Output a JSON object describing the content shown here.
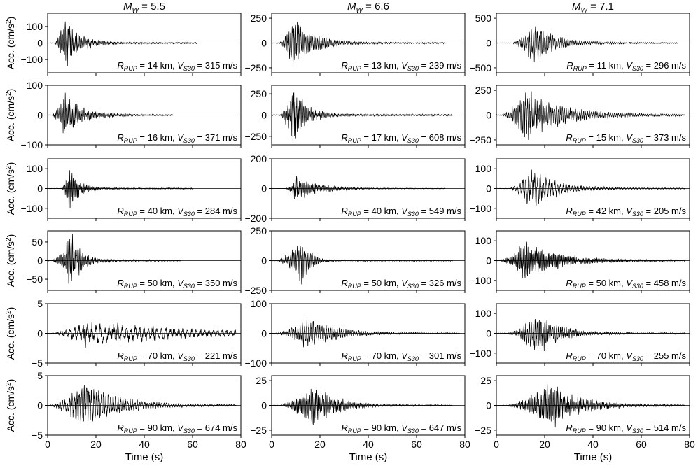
{
  "figure": {
    "columns": [
      {
        "label_main": "M",
        "label_sub": "W",
        "label_rest": " = 5.5"
      },
      {
        "label_main": "M",
        "label_sub": "W",
        "label_rest": " = 6.6"
      },
      {
        "label_main": "M",
        "label_sub": "W",
        "label_rest": " = 7.1"
      }
    ],
    "ylabel": {
      "main": "Acc. (cm/s",
      "sup": "2",
      "tail": ")"
    },
    "xlabel": "Time (s)",
    "trace_color": "#000000"
  },
  "chart_data": [
    {
      "type": "line",
      "row": 0,
      "col": 0,
      "magnitude": 5.5,
      "ylim": [
        -180,
        180
      ],
      "yticks": [
        -100,
        0,
        100
      ],
      "xlim": [
        0,
        80
      ],
      "xticks": [
        0,
        20,
        40,
        60,
        80
      ],
      "rrup_km": 14,
      "vs30": 315,
      "annotation": {
        "r": "14",
        "v": "315"
      },
      "peak": 140,
      "onset_s": 3,
      "envelope_peak_s": 7,
      "envelope_decay_s": 6,
      "coda_end_s": 62,
      "dominant_period_s": 0.6,
      "seed": 11
    },
    {
      "type": "line",
      "row": 0,
      "col": 1,
      "magnitude": 6.6,
      "ylim": [
        -300,
        300
      ],
      "yticks": [
        -250,
        0,
        250
      ],
      "xlim": [
        0,
        80
      ],
      "xticks": [
        0,
        20,
        40,
        60,
        80
      ],
      "rrup_km": 13,
      "vs30": 239,
      "annotation": {
        "r": "13",
        "v": "239"
      },
      "peak": 210,
      "onset_s": 3,
      "envelope_peak_s": 9,
      "envelope_decay_s": 8,
      "coda_end_s": 72,
      "dominant_period_s": 0.7,
      "seed": 21
    },
    {
      "type": "line",
      "row": 0,
      "col": 2,
      "magnitude": 7.1,
      "ylim": [
        -600,
        600
      ],
      "yticks": [
        -500,
        0,
        500
      ],
      "xlim": [
        0,
        80
      ],
      "xticks": [
        0,
        20,
        40,
        60,
        80
      ],
      "rrup_km": 11,
      "vs30": 296,
      "annotation": {
        "r": "11",
        "v": "296"
      },
      "peak": 380,
      "onset_s": 7,
      "envelope_peak_s": 15,
      "envelope_decay_s": 9,
      "coda_end_s": 75,
      "dominant_period_s": 0.8,
      "seed": 31
    },
    {
      "type": "line",
      "row": 1,
      "col": 0,
      "magnitude": 5.5,
      "ylim": [
        -100,
        100
      ],
      "yticks": [
        -100,
        0,
        100
      ],
      "xlim": [
        0,
        80
      ],
      "xticks": [
        0,
        20,
        40,
        60,
        80
      ],
      "rrup_km": 16,
      "vs30": 371,
      "annotation": {
        "r": "16",
        "v": "371"
      },
      "peak": 75,
      "onset_s": 2,
      "envelope_peak_s": 7,
      "envelope_decay_s": 7,
      "coda_end_s": 52,
      "dominant_period_s": 0.6,
      "seed": 12
    },
    {
      "type": "line",
      "row": 1,
      "col": 1,
      "magnitude": 6.6,
      "ylim": [
        -350,
        350
      ],
      "yticks": [
        -250,
        0,
        250
      ],
      "xlim": [
        0,
        80
      ],
      "xticks": [
        0,
        20,
        40,
        60,
        80
      ],
      "rrup_km": 17,
      "vs30": 608,
      "annotation": {
        "r": "17",
        "v": "608"
      },
      "peak": 340,
      "onset_s": 4,
      "envelope_peak_s": 9,
      "envelope_decay_s": 5,
      "coda_end_s": 75,
      "dominant_period_s": 0.6,
      "seed": 22
    },
    {
      "type": "line",
      "row": 1,
      "col": 2,
      "magnitude": 7.1,
      "ylim": [
        -300,
        300
      ],
      "yticks": [
        -250,
        0,
        250
      ],
      "xlim": [
        0,
        80
      ],
      "xticks": [
        0,
        20,
        40,
        60,
        80
      ],
      "rrup_km": 15,
      "vs30": 373,
      "annotation": {
        "r": "15",
        "v": "373"
      },
      "peak": 250,
      "onset_s": 3,
      "envelope_peak_s": 12,
      "envelope_decay_s": 14,
      "coda_end_s": 78,
      "dominant_period_s": 0.8,
      "seed": 32
    },
    {
      "type": "line",
      "row": 2,
      "col": 0,
      "magnitude": 5.5,
      "ylim": [
        -150,
        150
      ],
      "yticks": [
        -100,
        0,
        100
      ],
      "xlim": [
        0,
        80
      ],
      "xticks": [
        0,
        20,
        40,
        60,
        80
      ],
      "rrup_km": 40,
      "vs30": 284,
      "annotation": {
        "r": "40",
        "v": "284"
      },
      "peak": 100,
      "onset_s": 6,
      "envelope_peak_s": 9,
      "envelope_decay_s": 4,
      "coda_end_s": 60,
      "dominant_period_s": 0.5,
      "seed": 13
    },
    {
      "type": "line",
      "row": 2,
      "col": 1,
      "magnitude": 6.6,
      "ylim": [
        -200,
        200
      ],
      "yticks": [
        -200,
        0,
        200
      ],
      "xlim": [
        0,
        80
      ],
      "xticks": [
        0,
        20,
        40,
        60,
        80
      ],
      "rrup_km": 40,
      "vs30": 549,
      "annotation": {
        "r": "40",
        "v": "549"
      },
      "peak": 85,
      "onset_s": 6,
      "envelope_peak_s": 10,
      "envelope_decay_s": 9,
      "coda_end_s": 72,
      "dominant_period_s": 0.6,
      "seed": 23
    },
    {
      "type": "line",
      "row": 2,
      "col": 2,
      "magnitude": 7.1,
      "ylim": [
        -150,
        150
      ],
      "yticks": [
        -100,
        0,
        100
      ],
      "xlim": [
        0,
        80
      ],
      "xticks": [
        0,
        20,
        40,
        60,
        80
      ],
      "rrup_km": 42,
      "vs30": 205,
      "annotation": {
        "r": "42",
        "v": "205"
      },
      "peak": 95,
      "onset_s": 6,
      "envelope_peak_s": 14,
      "envelope_decay_s": 10,
      "coda_end_s": 78,
      "dominant_period_s": 1.2,
      "seed": 33
    },
    {
      "type": "line",
      "row": 3,
      "col": 0,
      "magnitude": 5.5,
      "ylim": [
        -80,
        80
      ],
      "yticks": [
        -50,
        0,
        50
      ],
      "xlim": [
        0,
        80
      ],
      "xticks": [
        0,
        20,
        40,
        60,
        80
      ],
      "rrup_km": 50,
      "vs30": 350,
      "annotation": {
        "r": "50",
        "v": "350"
      },
      "peak": 72,
      "onset_s": 2,
      "envelope_peak_s": 10,
      "envelope_decay_s": 4,
      "coda_end_s": 55,
      "dominant_period_s": 0.6,
      "seed": 14
    },
    {
      "type": "line",
      "row": 3,
      "col": 1,
      "magnitude": 6.6,
      "ylim": [
        -250,
        250
      ],
      "yticks": [
        -250,
        0,
        250
      ],
      "xlim": [
        0,
        80
      ],
      "xticks": [
        0,
        20,
        40,
        60,
        80
      ],
      "rrup_km": 50,
      "vs30": 326,
      "annotation": {
        "r": "50",
        "v": "326"
      },
      "peak": 200,
      "onset_s": 3,
      "envelope_peak_s": 13,
      "envelope_decay_s": 3,
      "coda_end_s": 75,
      "dominant_period_s": 0.7,
      "seed": 24
    },
    {
      "type": "line",
      "row": 3,
      "col": 2,
      "magnitude": 7.1,
      "ylim": [
        -150,
        150
      ],
      "yticks": [
        -100,
        0,
        100
      ],
      "xlim": [
        0,
        80
      ],
      "xticks": [
        0,
        20,
        40,
        60,
        80
      ],
      "rrup_km": 50,
      "vs30": 458,
      "annotation": {
        "r": "50",
        "v": "458"
      },
      "peak": 95,
      "onset_s": 2,
      "envelope_peak_s": 12,
      "envelope_decay_s": 14,
      "coda_end_s": 78,
      "dominant_period_s": 0.5,
      "seed": 34
    },
    {
      "type": "line",
      "row": 4,
      "col": 0,
      "magnitude": 5.5,
      "ylim": [
        -5,
        5
      ],
      "yticks": [
        -5,
        0,
        5
      ],
      "xlim": [
        0,
        80
      ],
      "xticks": [
        0,
        20,
        40,
        60,
        80
      ],
      "rrup_km": 70,
      "vs30": 221,
      "annotation": {
        "r": "70",
        "v": "221"
      },
      "peak": 2.4,
      "onset_s": 2,
      "envelope_peak_s": 16,
      "envelope_decay_s": 40,
      "coda_end_s": 78,
      "dominant_period_s": 1.8,
      "seed": 15
    },
    {
      "type": "line",
      "row": 4,
      "col": 1,
      "magnitude": 6.6,
      "ylim": [
        -100,
        100
      ],
      "yticks": [
        -100,
        0,
        100
      ],
      "xlim": [
        0,
        80
      ],
      "xticks": [
        0,
        20,
        40,
        60,
        80
      ],
      "rrup_km": 70,
      "vs30": 301,
      "annotation": {
        "r": "70",
        "v": "301"
      },
      "peak": 50,
      "onset_s": 2,
      "envelope_peak_s": 15,
      "envelope_decay_s": 12,
      "coda_end_s": 78,
      "dominant_period_s": 0.9,
      "seed": 25
    },
    {
      "type": "line",
      "row": 4,
      "col": 2,
      "magnitude": 7.1,
      "ylim": [
        -150,
        150
      ],
      "yticks": [
        -100,
        0,
        100
      ],
      "xlim": [
        0,
        80
      ],
      "xticks": [
        0,
        20,
        40,
        60,
        80
      ],
      "rrup_km": 70,
      "vs30": 255,
      "annotation": {
        "r": "70",
        "v": "255"
      },
      "peak": 90,
      "onset_s": 5,
      "envelope_peak_s": 17,
      "envelope_decay_s": 9,
      "coda_end_s": 78,
      "dominant_period_s": 0.8,
      "seed": 35
    },
    {
      "type": "line",
      "row": 5,
      "col": 0,
      "magnitude": 5.5,
      "ylim": [
        -5,
        5
      ],
      "yticks": [
        -5,
        0,
        5
      ],
      "xlim": [
        0,
        80
      ],
      "xticks": [
        0,
        20,
        40,
        60,
        80
      ],
      "rrup_km": 90,
      "vs30": 674,
      "annotation": {
        "r": "90",
        "v": "674"
      },
      "peak": 3.4,
      "onset_s": 1,
      "envelope_peak_s": 15,
      "envelope_decay_s": 14,
      "coda_end_s": 78,
      "dominant_period_s": 1.0,
      "seed": 16
    },
    {
      "type": "line",
      "row": 5,
      "col": 1,
      "magnitude": 6.6,
      "ylim": [
        -30,
        30
      ],
      "yticks": [
        -25,
        0,
        25
      ],
      "xlim": [
        0,
        80
      ],
      "xticks": [
        0,
        20,
        40,
        60,
        80
      ],
      "rrup_km": 90,
      "vs30": 647,
      "annotation": {
        "r": "90",
        "v": "647"
      },
      "peak": 20,
      "onset_s": 4,
      "envelope_peak_s": 17,
      "envelope_decay_s": 9,
      "coda_end_s": 75,
      "dominant_period_s": 0.6,
      "seed": 26
    },
    {
      "type": "line",
      "row": 5,
      "col": 2,
      "magnitude": 7.1,
      "ylim": [
        -30,
        30
      ],
      "yticks": [
        -25,
        0,
        25
      ],
      "xlim": [
        0,
        80
      ],
      "xticks": [
        0,
        20,
        40,
        60,
        80
      ],
      "rrup_km": 90,
      "vs30": 514,
      "annotation": {
        "r": "90",
        "v": "514"
      },
      "peak": 22,
      "onset_s": 5,
      "envelope_peak_s": 22,
      "envelope_decay_s": 12,
      "coda_end_s": 78,
      "dominant_period_s": 0.6,
      "seed": 36
    }
  ]
}
